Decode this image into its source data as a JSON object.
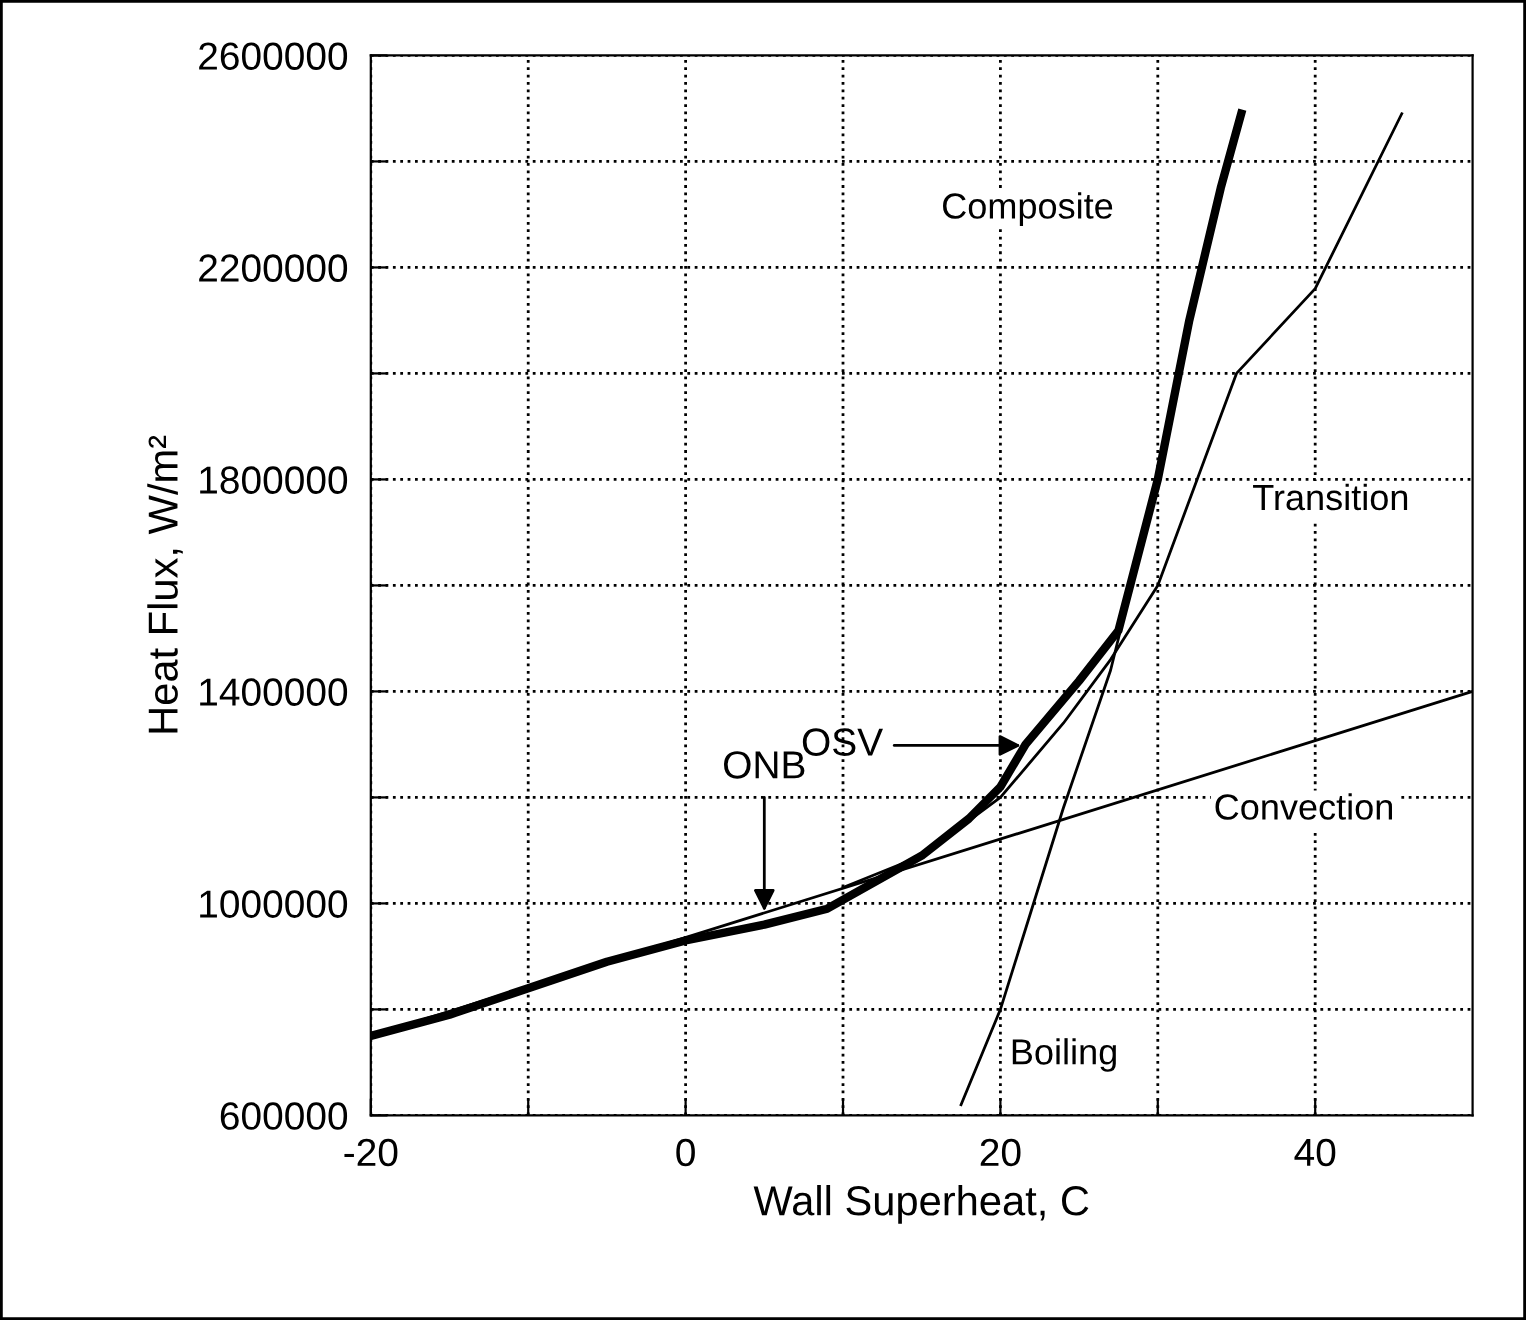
{
  "chart_data": {
    "type": "line",
    "xlabel": "Wall Superheat, C",
    "ylabel": "Heat Flux, W/m²",
    "xlim": [
      -20,
      50
    ],
    "ylim": [
      600000,
      2600000
    ],
    "xticks": [
      -20,
      {
        "value": -10,
        "label": null
      },
      0,
      {
        "value": 10,
        "label": null
      },
      20,
      {
        "value": 30,
        "label": null
      },
      40
    ],
    "yticks": [
      600000,
      {
        "value": 800000,
        "label": null
      },
      1000000,
      {
        "value": 1200000,
        "label": null
      },
      1400000,
      {
        "value": 1600000,
        "label": null
      },
      1800000,
      {
        "value": 2000000,
        "label": null
      },
      2200000,
      {
        "value": 2400000,
        "label": null
      },
      2600000
    ],
    "grid": true,
    "legend": false,
    "line_style": "solid",
    "marker": "none",
    "series": [
      {
        "name": "Composite",
        "color": "#000000",
        "x": [
          -20,
          -15,
          -10,
          -5,
          0,
          5,
          9,
          12,
          15,
          18,
          20,
          21.6,
          25,
          27.5,
          30,
          32,
          34,
          35.3
        ],
        "values": [
          750000,
          790000,
          840000,
          890000,
          930000,
          960000,
          990000,
          1040000,
          1090000,
          1160000,
          1220000,
          1300000,
          1420000,
          1515000,
          1800000,
          2100000,
          2350000,
          2490000
        ]
      },
      {
        "name": "Transition",
        "color": "#000000",
        "x": [
          10,
          15,
          20,
          24,
          27,
          30,
          35,
          40,
          45.5
        ],
        "values": [
          1030000,
          1090000,
          1200000,
          1340000,
          1460000,
          1600000,
          2000000,
          2160000,
          2490000
        ]
      },
      {
        "name": "Convection",
        "color": "#000000",
        "x": [
          -20,
          50
        ],
        "values": [
          750000,
          1400000
        ]
      },
      {
        "name": "Boiling",
        "color": "#000000",
        "x": [
          17.5,
          20,
          24,
          27,
          30
        ],
        "values": [
          620000,
          800000,
          1180000,
          1440000,
          1800000
        ]
      }
    ],
    "annotations": [
      {
        "text": "ONB",
        "x": 5,
        "y": 985000
      },
      "OSV"
    ]
  }
}
